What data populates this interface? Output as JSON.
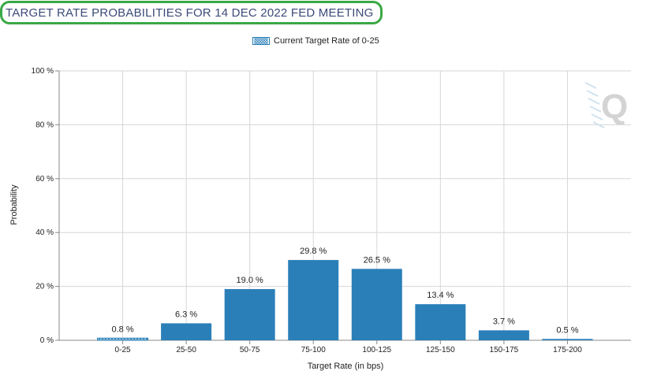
{
  "title": "TARGET RATE PROBABILITIES FOR 14 DEC 2022 FED MEETING",
  "legend": {
    "label": "Current Target Rate of 0-25"
  },
  "colors": {
    "bar": "#2a7fb8",
    "grid": "#d6d6d6",
    "axis": "#888888",
    "title_border": "#3aa845",
    "title_text": "#3b4a78"
  },
  "watermark": {
    "letter": "Q"
  },
  "chart_data": {
    "type": "bar",
    "title": "TARGET RATE PROBABILITIES FOR 14 DEC 2022 FED MEETING",
    "xlabel": "Target Rate (in bps)",
    "ylabel": "Probability",
    "categories": [
      "0-25",
      "25-50",
      "50-75",
      "75-100",
      "100-125",
      "125-150",
      "150-175",
      "175-200"
    ],
    "values": [
      0.8,
      6.3,
      19.0,
      29.8,
      26.5,
      13.4,
      3.7,
      0.5
    ],
    "value_labels": [
      "0.8 %",
      "6.3 %",
      "19.0 %",
      "29.8 %",
      "26.5 %",
      "13.4 %",
      "3.7 %",
      "0.5 %"
    ],
    "current_category": "0-25",
    "ylim": [
      0,
      100
    ],
    "yticks": [
      0,
      20,
      40,
      60,
      80,
      100
    ],
    "ytick_labels": [
      "0 %",
      "20 %",
      "40 %",
      "60 %",
      "80 %",
      "100 %"
    ],
    "grid": true,
    "legend_position": "top-center"
  }
}
